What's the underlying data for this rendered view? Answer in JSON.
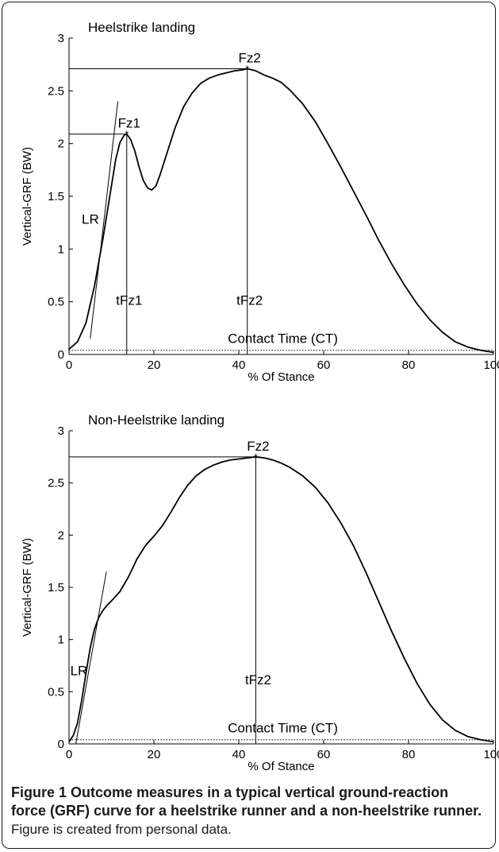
{
  "colors": {
    "line": "#000000",
    "frame": "#1a1a1a"
  },
  "chart_data": [
    {
      "type": "line",
      "title": "Heelstrike landing",
      "xlabel": "% Of Stance",
      "ylabel": "Vertical-GRF (BW)",
      "xlim": [
        0,
        100
      ],
      "ylim": [
        0,
        3
      ],
      "xticks": [
        "0",
        "20",
        "40",
        "60",
        "80",
        "100"
      ],
      "yticks": [
        "0",
        "0.5",
        "1",
        "1.5",
        "2",
        "2.5",
        "3"
      ],
      "grid": false,
      "x": [
        0,
        2,
        4,
        6,
        8,
        10,
        11,
        12,
        13,
        13.6,
        14.5,
        15.5,
        16.5,
        17.5,
        18.5,
        19.5,
        20.5,
        21.5,
        23,
        25,
        27,
        29,
        31,
        33,
        35,
        37,
        39,
        41,
        42,
        43,
        44,
        46,
        48,
        50,
        52,
        55,
        58,
        61,
        64,
        67,
        70,
        73,
        76,
        79,
        82,
        85,
        88,
        91,
        94,
        97,
        100
      ],
      "series": [
        {
          "values": [
            0.05,
            0.12,
            0.3,
            0.65,
            1.1,
            1.6,
            1.85,
            2.01,
            2.08,
            2.09,
            2.04,
            1.93,
            1.78,
            1.65,
            1.58,
            1.56,
            1.6,
            1.71,
            1.9,
            2.15,
            2.35,
            2.48,
            2.57,
            2.62,
            2.65,
            2.67,
            2.69,
            2.7,
            2.71,
            2.7,
            2.69,
            2.65,
            2.62,
            2.58,
            2.51,
            2.38,
            2.21,
            2.0,
            1.78,
            1.55,
            1.32,
            1.08,
            0.86,
            0.66,
            0.48,
            0.33,
            0.21,
            0.12,
            0.07,
            0.04,
            0.02
          ]
        }
      ],
      "markers": {
        "fz1": {
          "label": "Fz1",
          "x": 13.6,
          "y": 2.09
        },
        "fz2": {
          "label": "Fz2",
          "x": 42,
          "y": 2.71
        },
        "tfz1": {
          "label": "tFz1"
        },
        "tfz2": {
          "label": "tFz2"
        },
        "lr": {
          "label": "LR",
          "tangent_from": [
            5,
            0.15
          ],
          "tangent_to": [
            11.5,
            2.4
          ]
        },
        "ct": {
          "label": "Contact Time (CT)",
          "y": 0.04
        }
      }
    },
    {
      "type": "line",
      "title": "Non-Heelstrike landing",
      "xlabel": "% Of Stance",
      "ylabel": "Vertical-GRF (BW)",
      "xlim": [
        0,
        100
      ],
      "ylim": [
        0,
        3
      ],
      "xticks": [
        "0",
        "20",
        "40",
        "60",
        "80",
        "100"
      ],
      "yticks": [
        "0",
        "0.5",
        "1",
        "1.5",
        "2",
        "2.5",
        "3"
      ],
      "grid": false,
      "x": [
        0,
        1,
        2,
        3,
        4,
        5,
        6,
        7,
        8,
        9,
        10,
        12,
        14,
        16,
        18,
        20,
        22,
        24,
        26,
        28,
        30,
        32,
        34,
        36,
        38,
        40,
        42,
        44,
        46,
        48,
        50,
        52,
        55,
        58,
        61,
        64,
        67,
        70,
        73,
        76,
        79,
        82,
        85,
        88,
        91,
        94,
        97,
        100
      ],
      "series": [
        {
          "values": [
            0.02,
            0.08,
            0.2,
            0.42,
            0.68,
            0.92,
            1.1,
            1.21,
            1.28,
            1.33,
            1.37,
            1.46,
            1.6,
            1.77,
            1.9,
            1.99,
            2.09,
            2.22,
            2.36,
            2.48,
            2.57,
            2.63,
            2.67,
            2.7,
            2.72,
            2.73,
            2.74,
            2.75,
            2.74,
            2.72,
            2.69,
            2.65,
            2.57,
            2.46,
            2.31,
            2.12,
            1.9,
            1.64,
            1.36,
            1.08,
            0.82,
            0.58,
            0.38,
            0.23,
            0.13,
            0.07,
            0.04,
            0.02
          ]
        }
      ],
      "markers": {
        "fz2": {
          "label": "Fz2",
          "x": 44,
          "y": 2.75
        },
        "tfz2": {
          "label": "tFz2"
        },
        "lr": {
          "label": "LR",
          "tangent_from": [
            1.6,
            0.0
          ],
          "tangent_to": [
            8.8,
            1.65
          ]
        },
        "ct": {
          "label": "Contact Time (CT)",
          "y": 0.04
        }
      }
    }
  ],
  "caption": {
    "bold": "Figure 1 Outcome measures in a typical vertical ground-reaction force (GRF) curve for a heelstrike runner and a non-heelstrike runner.",
    "normal": " Figure is created from personal data."
  }
}
